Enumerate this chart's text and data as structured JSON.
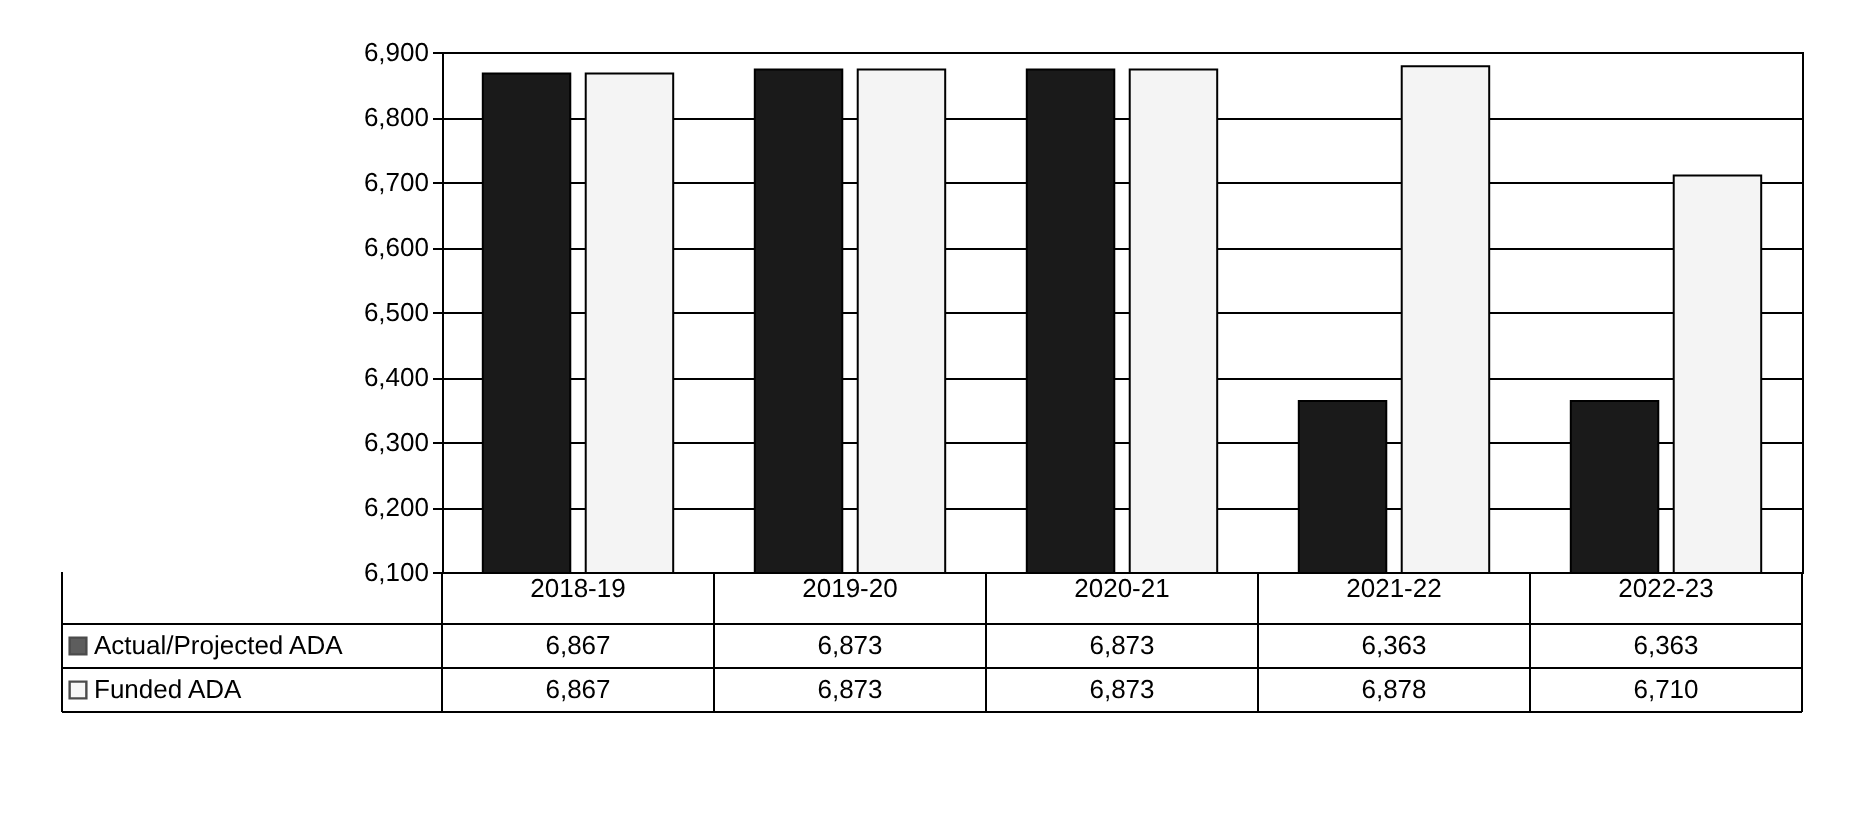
{
  "chart_data": {
    "type": "bar",
    "categories": [
      "2018-19",
      "2019-20",
      "2020-21",
      "2021-22",
      "2022-23"
    ],
    "series": [
      {
        "name": "Actual/Projected ADA",
        "color": "#1a1a1a",
        "values": [
          6867,
          6873,
          6873,
          6363,
          6363
        ],
        "value_labels": [
          "6,867",
          "6,873",
          "6,873",
          "6,363",
          "6,363"
        ]
      },
      {
        "name": "Funded ADA",
        "color": "#f4f4f4",
        "values": [
          6867,
          6873,
          6873,
          6878,
          6710
        ],
        "value_labels": [
          "6,867",
          "6,873",
          "6,873",
          "6,878",
          "6,710"
        ]
      }
    ],
    "ylim": [
      6100,
      6900
    ],
    "yticks": [
      {
        "value": 6100,
        "label": "6,100"
      },
      {
        "value": 6200,
        "label": "6,200"
      },
      {
        "value": 6300,
        "label": "6,300"
      },
      {
        "value": 6400,
        "label": "6,400"
      },
      {
        "value": 6500,
        "label": "6,500"
      },
      {
        "value": 6600,
        "label": "6,600"
      },
      {
        "value": 6700,
        "label": "6,700"
      },
      {
        "value": 6800,
        "label": "6,800"
      },
      {
        "value": 6900,
        "label": "6,900"
      }
    ],
    "grid": "y",
    "legend": "bottom left"
  }
}
